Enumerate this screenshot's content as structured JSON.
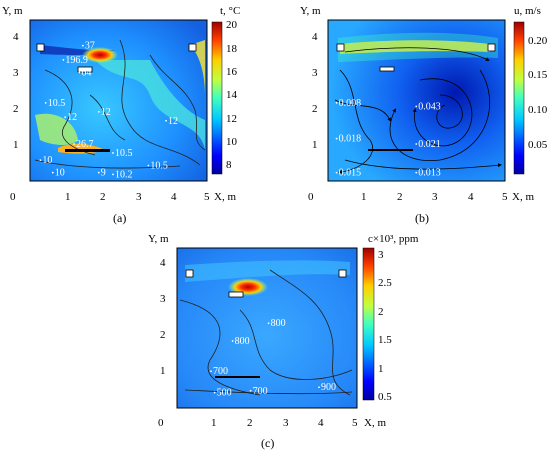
{
  "figure_captions": [
    "(a)",
    "(b)",
    "(c)"
  ],
  "chart_data": [
    {
      "type": "heatmap",
      "panel": "(a)",
      "title": "",
      "xlabel": "X, m",
      "ylabel": "Y, m",
      "xlim": [
        0,
        5
      ],
      "ylim": [
        0,
        4.5
      ],
      "x_ticks": [
        "0",
        "1",
        "2",
        "3",
        "4",
        "5"
      ],
      "y_ticks": [
        "1",
        "2",
        "3",
        "4"
      ],
      "colorbar": {
        "title": "t, °C",
        "min": 7,
        "max": 20,
        "ticks": [
          "8",
          "10",
          "12",
          "14",
          "16",
          "18",
          "20"
        ]
      },
      "annotations": [
        {
          "text": "37",
          "x": 1.55,
          "y": 3.7
        },
        {
          "text": "196.9",
          "x": 1.0,
          "y": 3.3
        },
        {
          "text": "64",
          "x": 1.45,
          "y": 2.95
        },
        {
          "text": "10.5",
          "x": 0.5,
          "y": 2.1
        },
        {
          "text": "12",
          "x": 1.05,
          "y": 1.7
        },
        {
          "text": "12",
          "x": 2.0,
          "y": 1.85
        },
        {
          "text": "12",
          "x": 3.9,
          "y": 1.6
        },
        {
          "text": "26.7",
          "x": 1.3,
          "y": 0.95
        },
        {
          "text": "10.5",
          "x": 2.4,
          "y": 0.7
        },
        {
          "text": "10.5",
          "x": 3.4,
          "y": 0.35
        },
        {
          "text": "10",
          "x": 0.35,
          "y": 0.5
        },
        {
          "text": "10",
          "x": 0.7,
          "y": 0.15
        },
        {
          "text": "9",
          "x": 2.0,
          "y": 0.15
        },
        {
          "text": "10.2",
          "x": 2.4,
          "y": 0.1
        }
      ]
    },
    {
      "type": "heatmap",
      "panel": "(b)",
      "title": "",
      "xlabel": "X, m",
      "ylabel": "Y, m",
      "xlim": [
        0,
        5
      ],
      "ylim": [
        0,
        4.5
      ],
      "x_ticks": [
        "0",
        "1",
        "2",
        "3",
        "4",
        "5"
      ],
      "y_ticks": [
        "1",
        "2",
        "3",
        "4"
      ],
      "colorbar": {
        "title": "u, m/s",
        "min": 0,
        "max": 0.22,
        "ticks": [
          "0.05",
          "0.10",
          "0.15",
          "0.20"
        ]
      },
      "annotations": [
        {
          "text": "0.008",
          "x": 0.3,
          "y": 2.1
        },
        {
          "text": "0.043",
          "x": 2.55,
          "y": 2.0
        },
        {
          "text": "0.018",
          "x": 0.3,
          "y": 1.1
        },
        {
          "text": "0.021",
          "x": 2.55,
          "y": 0.95
        },
        {
          "text": "0.015",
          "x": 0.3,
          "y": 0.15
        },
        {
          "text": "0.013",
          "x": 2.55,
          "y": 0.15
        }
      ]
    },
    {
      "type": "heatmap",
      "panel": "(c)",
      "title": "",
      "xlabel": "X, m",
      "ylabel": "Y, m",
      "xlim": [
        0,
        5
      ],
      "ylim": [
        0,
        4.5
      ],
      "x_ticks": [
        "0",
        "1",
        "2",
        "3",
        "4",
        "5"
      ],
      "y_ticks": [
        "1",
        "2",
        "3",
        "4"
      ],
      "colorbar": {
        "title": "c×10³, ppm",
        "min": 0.3,
        "max": 3.0,
        "ticks": [
          "0.5",
          "1",
          "1.5",
          "2",
          "2.5",
          "3"
        ]
      },
      "annotations": [
        {
          "text": "800",
          "x": 1.6,
          "y": 1.8
        },
        {
          "text": "800",
          "x": 2.6,
          "y": 2.3
        },
        {
          "text": "700",
          "x": 1.0,
          "y": 0.95
        },
        {
          "text": "500",
          "x": 1.1,
          "y": 0.35
        },
        {
          "text": "700",
          "x": 2.1,
          "y": 0.4
        },
        {
          "text": "900",
          "x": 4.0,
          "y": 0.5
        }
      ]
    }
  ]
}
